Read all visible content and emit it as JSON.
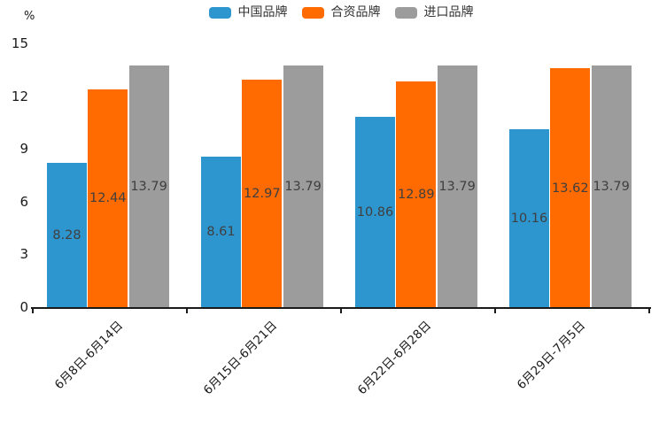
{
  "chart_data": {
    "type": "bar",
    "title": "",
    "xlabel": "",
    "ylabel": "%",
    "categories": [
      "6月8日-6月14日",
      "6月15日-6月21日",
      "6月22日-6月28日",
      "6月29日-7月5日"
    ],
    "series": [
      {
        "name": "中国品牌",
        "color": "#2E96CE",
        "values": [
          8.28,
          8.61,
          10.86,
          10.16
        ]
      },
      {
        "name": "合资品牌",
        "color": "#FF6B00",
        "values": [
          12.44,
          12.97,
          12.89,
          13.62
        ]
      },
      {
        "name": "进口品牌",
        "color": "#9C9C9C",
        "values": [
          13.79,
          13.79,
          13.79,
          13.79
        ]
      }
    ],
    "ylim": [
      0,
      15
    ],
    "yticks": [
      0,
      3,
      6,
      9,
      12,
      15
    ],
    "grid": false,
    "legend_position": "top",
    "value_labels": "inside-center"
  },
  "colors": {
    "axis_line": "#1a1a1a",
    "tick_label": "#1a1a1a",
    "value_label": "#3f3f3f",
    "legend_label": "#333333",
    "background": "#ffffff"
  }
}
